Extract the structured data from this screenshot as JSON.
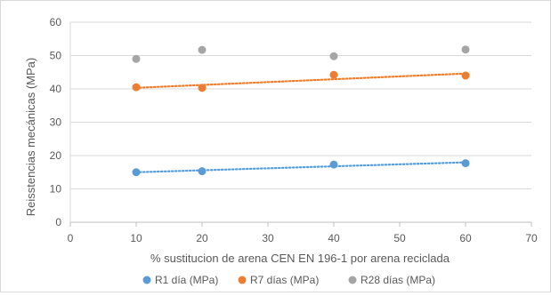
{
  "chart_data": {
    "type": "scatter",
    "title": "",
    "xlabel": "% sustitucion de arena CEN EN 196-1 por arena reciclada",
    "ylabel": "Reisstencias mecánicas (MPa)",
    "xlim": [
      0,
      70
    ],
    "ylim": [
      0,
      60
    ],
    "xticks": [
      0,
      10,
      20,
      30,
      40,
      50,
      60,
      70
    ],
    "yticks": [
      0,
      10,
      20,
      30,
      40,
      50,
      60
    ],
    "grid": "horizontal",
    "legend_position": "bottom",
    "series": [
      {
        "name": "R1 día (MPa)",
        "color": "#5b9bd5",
        "points": [
          {
            "x": 10,
            "y": 15.0
          },
          {
            "x": 20,
            "y": 15.3
          },
          {
            "x": 40,
            "y": 17.3
          },
          {
            "x": 60,
            "y": 17.7
          }
        ],
        "trendline": {
          "type": "linear",
          "dotted": true
        }
      },
      {
        "name": "R7 días (MPa)",
        "color": "#ed7d31",
        "points": [
          {
            "x": 10,
            "y": 40.5
          },
          {
            "x": 20,
            "y": 40.3
          },
          {
            "x": 40,
            "y": 44.2
          },
          {
            "x": 60,
            "y": 44.0
          }
        ],
        "trendline": {
          "type": "linear",
          "dotted": true
        }
      },
      {
        "name": "R28 días (MPa)",
        "color": "#a5a5a5",
        "points": [
          {
            "x": 10,
            "y": 49.0
          },
          {
            "x": 20,
            "y": 51.7
          },
          {
            "x": 40,
            "y": 49.8
          },
          {
            "x": 60,
            "y": 51.8
          }
        ],
        "trendline": null
      }
    ]
  }
}
